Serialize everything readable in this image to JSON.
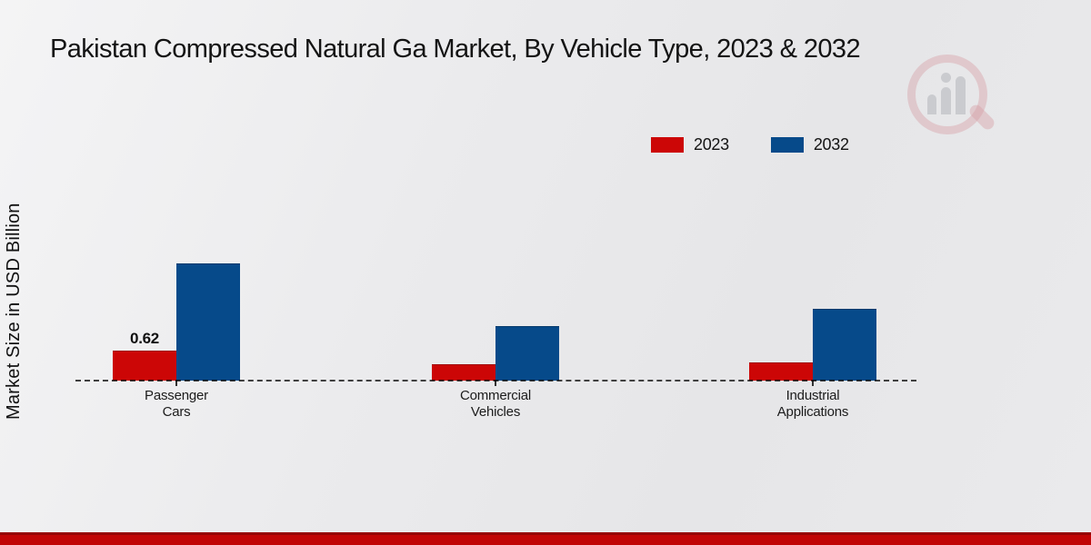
{
  "page": {
    "title": "Pakistan Compressed Natural Ga Market, By Vehicle Type, 2023 & 2032",
    "y_axis_label": "Market Size in USD Billion"
  },
  "legend": {
    "position": "top-right",
    "items": [
      {
        "label": "2023",
        "color": "#cc0606"
      },
      {
        "label": "2032",
        "color": "#064a8a"
      }
    ]
  },
  "watermark": {
    "name": "market-research-future-logo"
  },
  "colors": {
    "series_2023": "#cc0606",
    "series_2032": "#064a8a",
    "background": "#e9e9eb",
    "bottom_band": "#c10505",
    "baseline": "#3f3f3f",
    "text": "#141414"
  },
  "chart_data": {
    "type": "bar",
    "title": "Pakistan Compressed Natural Ga Market, By Vehicle Type, 2023 & 2032",
    "xlabel": "",
    "ylabel": "Market Size in USD Billion",
    "categories": [
      "Passenger\nCars",
      "Commercial\nVehicles",
      "Industrial\nApplications"
    ],
    "series": [
      {
        "name": "2023",
        "color": "#cc0606",
        "values": [
          0.62,
          0.34,
          0.38
        ],
        "labels": [
          "0.62",
          "",
          ""
        ]
      },
      {
        "name": "2032",
        "color": "#064a8a",
        "values": [
          2.42,
          1.12,
          1.48
        ],
        "labels": [
          "",
          "",
          ""
        ]
      }
    ],
    "ylim": [
      0,
      4.5
    ],
    "grid": false,
    "y_ticks_shown": false,
    "baseline_style": "dashed",
    "legend_position": "top-right"
  }
}
